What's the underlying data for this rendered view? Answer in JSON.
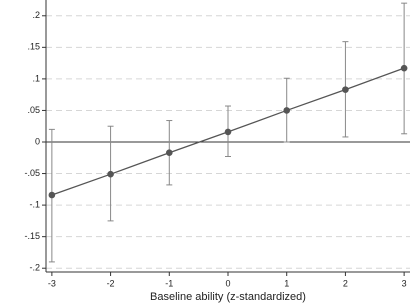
{
  "chart_data": {
    "type": "line",
    "x": [
      -3,
      -2,
      -1,
      0,
      1,
      2,
      3
    ],
    "series": [
      {
        "color": "#555555",
        "values": [
          -0.084,
          -0.051,
          -0.017,
          0.016,
          0.05,
          0.083,
          0.117
        ],
        "lower": [
          -0.19,
          -0.125,
          -0.068,
          -0.023,
          0,
          0.008,
          0.013
        ],
        "upper": [
          0.02,
          0.025,
          0.034,
          0.057,
          0.101,
          0.159,
          0.22
        ]
      }
    ],
    "error_color": "#888888",
    "xlabel": "Baseline ability (z-standardized)",
    "xlim": [
      -3.1,
      3.1
    ],
    "xticks": [
      -3,
      -2,
      -1,
      0,
      1,
      2,
      3
    ],
    "ylim": [
      -0.206,
      0.225
    ],
    "yticks": [
      {
        "value": -0.2,
        "label": "-.2"
      },
      {
        "value": -0.15,
        "label": "-.15"
      },
      {
        "value": -0.1,
        "label": "-.1"
      },
      {
        "value": -0.05,
        "label": "-.05"
      },
      0,
      {
        "value": 0.05,
        "label": ".05"
      },
      {
        "value": 0.1,
        "label": ".1"
      },
      {
        "value": 0.15,
        "label": ".15"
      },
      {
        "value": 0.2,
        "label": ".2"
      }
    ],
    "grid": true,
    "yline": 0
  }
}
